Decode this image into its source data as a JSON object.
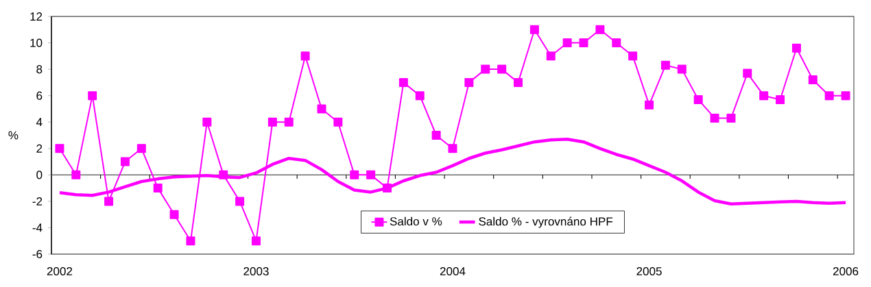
{
  "chart_data": {
    "type": "line",
    "ylabel": "%",
    "ylim": [
      -6,
      12
    ],
    "yticks": [
      -6,
      -4,
      -2,
      0,
      2,
      4,
      6,
      8,
      10,
      12
    ],
    "legend": "bottom",
    "categories": [
      "2002",
      null,
      null,
      null,
      null,
      null,
      null,
      null,
      null,
      null,
      null,
      null,
      "2003",
      null,
      null,
      null,
      null,
      null,
      null,
      null,
      null,
      null,
      null,
      null,
      "2004",
      null,
      null,
      null,
      null,
      null,
      null,
      null,
      null,
      null,
      null,
      null,
      "2005",
      null,
      null,
      null,
      null,
      null,
      null,
      null,
      null,
      null,
      null,
      null,
      "2006"
    ],
    "series": [
      {
        "name": "Saldo v %",
        "color": "#ff00ff",
        "marker": "square",
        "values": [
          2,
          0,
          6,
          -2,
          1,
          2,
          -1,
          -3,
          -5,
          4,
          0,
          -2,
          -5,
          4,
          4,
          9,
          5,
          4,
          0,
          0,
          -1,
          7,
          6,
          3,
          2,
          7,
          8,
          8,
          7,
          11,
          9,
          10,
          10,
          11,
          10,
          9,
          5.3,
          8.3,
          8,
          5.7,
          4.3,
          4.3,
          7.7,
          6,
          5.7,
          9.6,
          7.2,
          6,
          6
        ]
      },
      {
        "name": "Saldo % - vyrovnáno HPF",
        "color": "#ff00ff",
        "marker": "none",
        "values": [
          -1.35,
          -1.5,
          -1.55,
          -1.3,
          -0.9,
          -0.5,
          -0.3,
          -0.15,
          -0.1,
          -0.05,
          -0.15,
          -0.2,
          0.15,
          0.8,
          1.25,
          1.1,
          0.4,
          -0.5,
          -1.15,
          -1.3,
          -1.0,
          -0.45,
          -0.05,
          0.2,
          0.7,
          1.25,
          1.65,
          1.9,
          2.2,
          2.5,
          2.65,
          2.7,
          2.5,
          2.0,
          1.55,
          1.2,
          0.7,
          0.2,
          -0.45,
          -1.3,
          -1.95,
          -2.2,
          -2.15,
          -2.1,
          -2.05,
          -2.0,
          -2.1,
          -2.15,
          -2.1
        ]
      }
    ]
  }
}
